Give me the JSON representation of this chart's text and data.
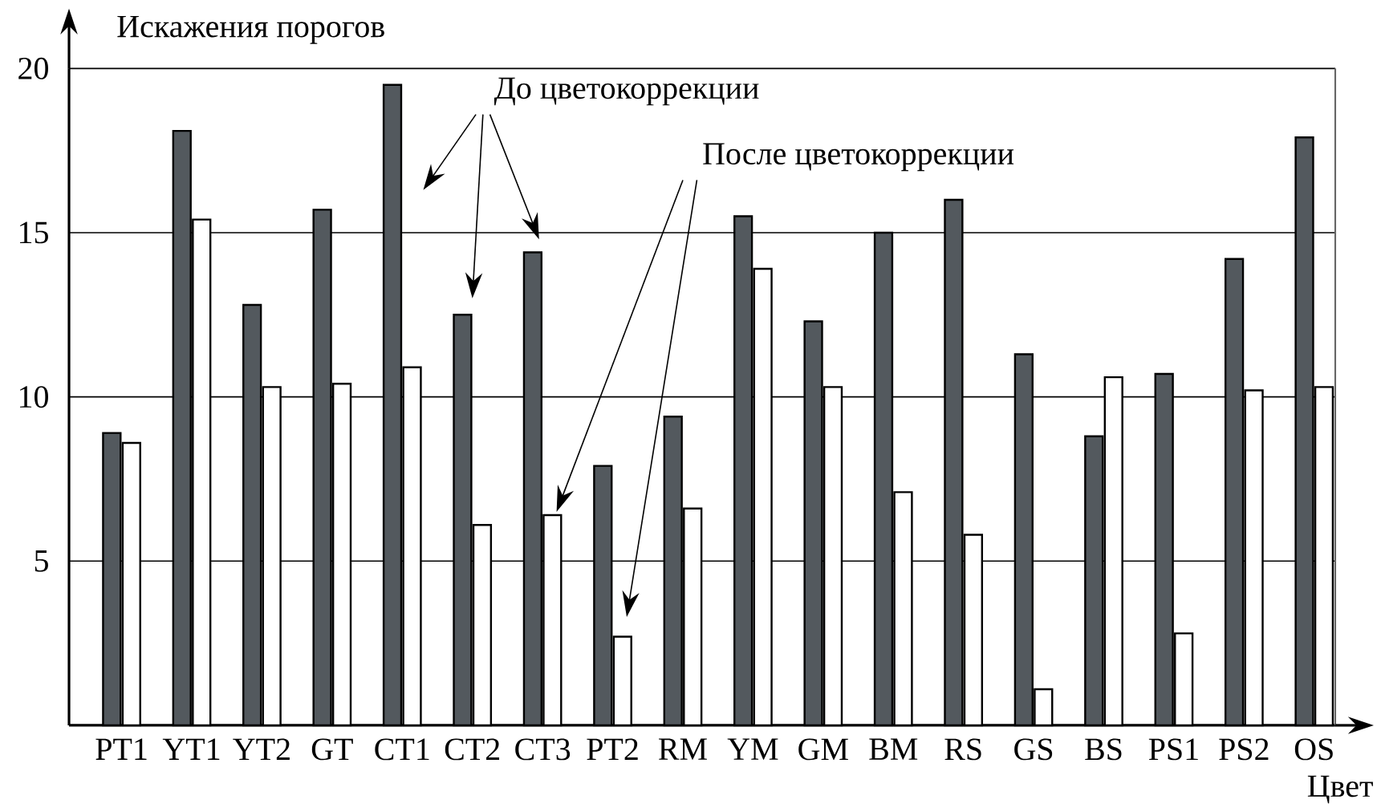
{
  "chart_data": {
    "type": "bar",
    "ylabel": "Искажения  порогов",
    "xlabel": "Цвет",
    "categories": [
      "PT1",
      "YT1",
      "YT2",
      "GT",
      "CT1",
      "CT2",
      "CT3",
      "PT2",
      "RM",
      "YM",
      "GM",
      "BM",
      "RS",
      "GS",
      "BS",
      "PS1",
      "PS2",
      "OS"
    ],
    "series": [
      {
        "color": "#53595e",
        "values": [
          8.9,
          18.1,
          12.8,
          15.7,
          19.5,
          12.5,
          14.4,
          7.9,
          9.4,
          15.5,
          12.3,
          15.0,
          16.0,
          11.3,
          8.8,
          10.7,
          14.2,
          17.9
        ]
      },
      {
        "color": "#ffffff",
        "values": [
          8.6,
          15.4,
          10.3,
          10.4,
          10.9,
          6.1,
          6.4,
          2.7,
          6.6,
          13.9,
          10.3,
          7.1,
          5.8,
          1.1,
          10.6,
          2.8,
          10.2,
          10.3
        ]
      }
    ],
    "annotations": [
      "До цветокоррекции",
      "После цветокоррекции"
    ],
    "ylim": [
      0,
      20
    ],
    "yticks": [
      5,
      10,
      15,
      20
    ],
    "grid": "y"
  }
}
